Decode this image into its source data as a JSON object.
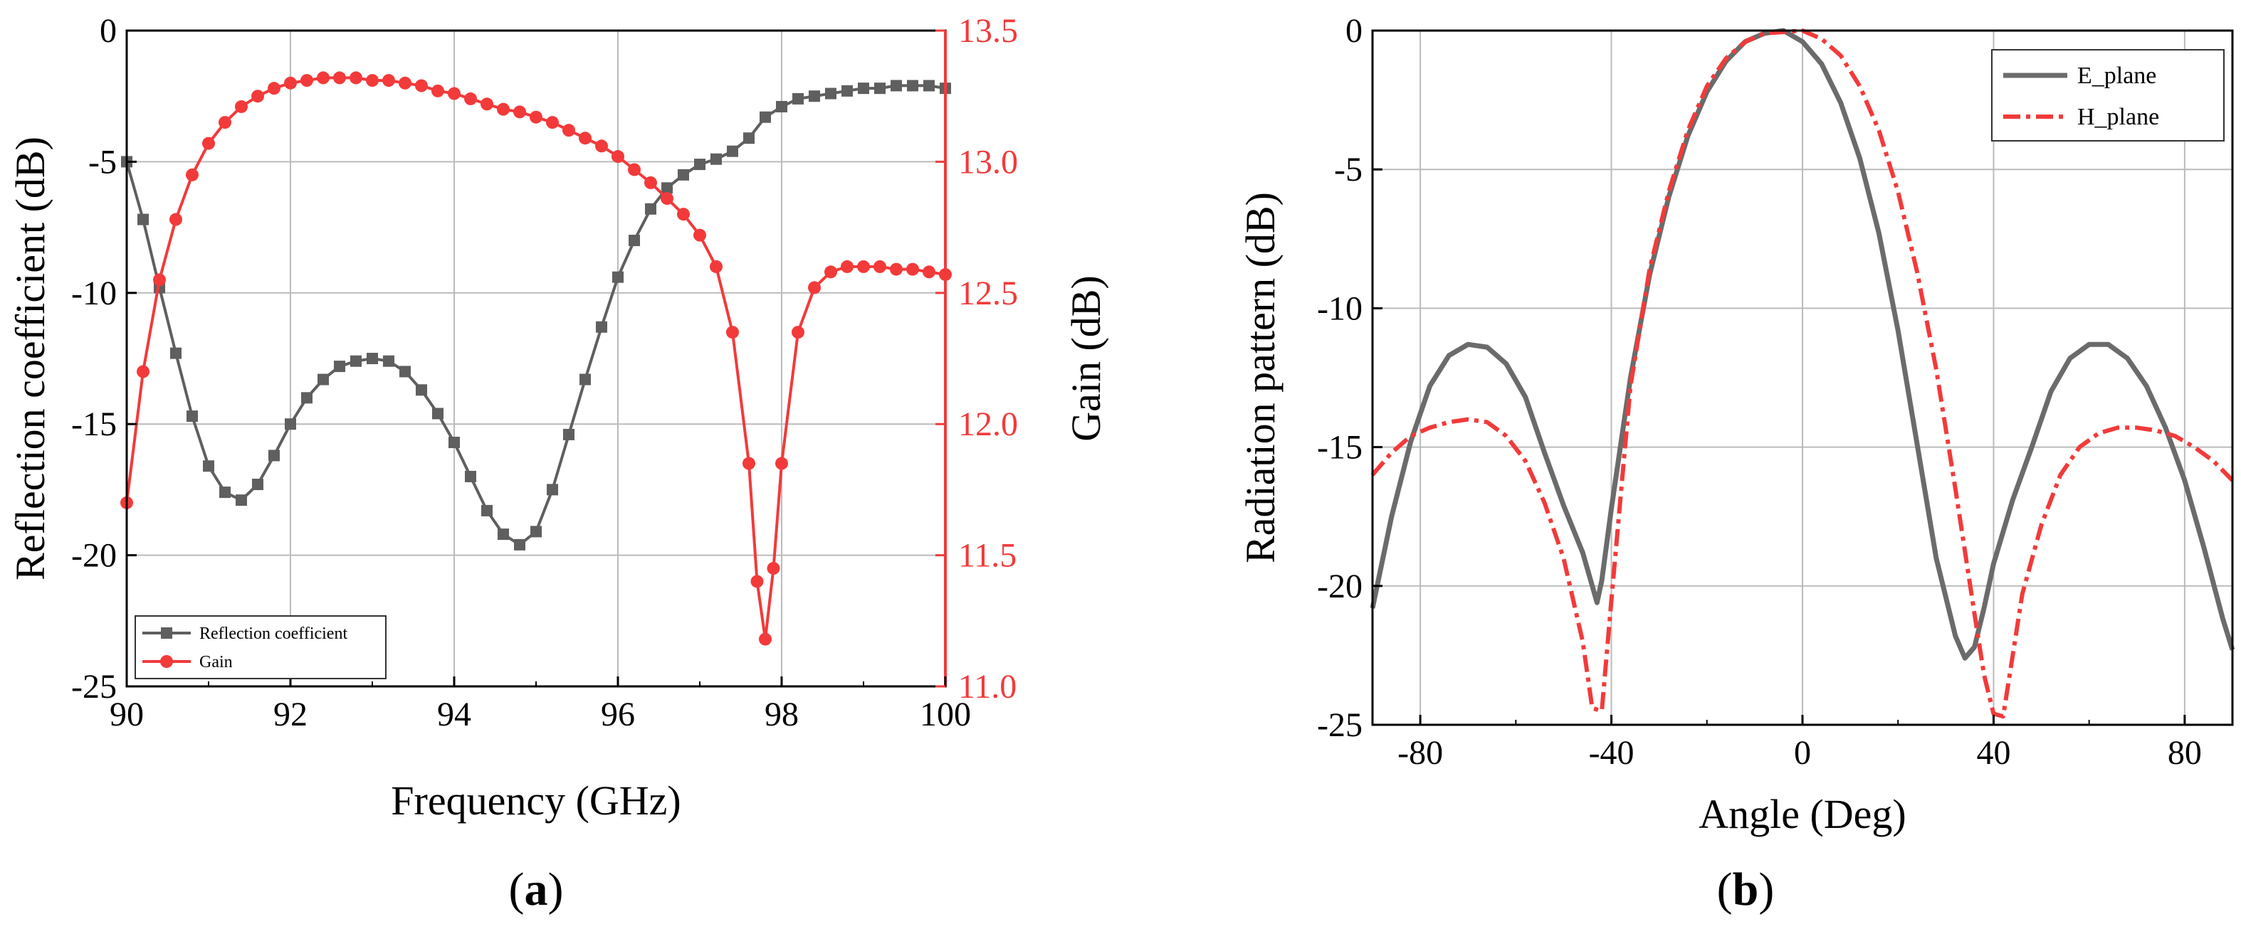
{
  "chart_data": [
    {
      "id": "a",
      "type": "line",
      "caption": {
        "open": "(",
        "letter": "a",
        "close": ")"
      },
      "xlabel": "Frequency (GHz)",
      "ylabel": "Reflection coefficient (dB)",
      "y2label": "Gain (dB)",
      "xlim": [
        90,
        100
      ],
      "ylim": [
        -25,
        0
      ],
      "y2lim": [
        11.0,
        13.5
      ],
      "xticks": [
        "90",
        "92",
        "94",
        "96",
        "98",
        "100"
      ],
      "xtick_values": [
        90,
        92,
        94,
        96,
        98,
        100
      ],
      "yticks": [
        "0",
        "-5",
        "-10",
        "-15",
        "-20",
        "-25"
      ],
      "ytick_values": [
        0,
        -5,
        -10,
        -15,
        -20,
        -25
      ],
      "y2ticks": [
        "13.5",
        "13.0",
        "12.5",
        "12.0",
        "11.5",
        "11.0"
      ],
      "y2tick_values": [
        13.5,
        13.0,
        12.5,
        12.0,
        11.5,
        11.0
      ],
      "colors": {
        "reflection": "#5f5f5f",
        "gain": "#f23a3a",
        "grid": "#bbbbbb"
      },
      "series": [
        {
          "name": "Reflection coefficient",
          "axis": "left",
          "marker": "square",
          "x": [
            90.0,
            90.2,
            90.4,
            90.6,
            90.8,
            91.0,
            91.2,
            91.4,
            91.6,
            91.8,
            92.0,
            92.2,
            92.4,
            92.6,
            92.8,
            93.0,
            93.2,
            93.4,
            93.6,
            93.8,
            94.0,
            94.2,
            94.4,
            94.6,
            94.8,
            95.0,
            95.2,
            95.4,
            95.6,
            95.8,
            96.0,
            96.2,
            96.4,
            96.6,
            96.8,
            97.0,
            97.2,
            97.4,
            97.6,
            97.8,
            98.0,
            98.2,
            98.4,
            98.6,
            98.8,
            99.0,
            99.2,
            99.4,
            99.6,
            99.8,
            100.0
          ],
          "y": [
            -5.0,
            -7.2,
            -9.8,
            -12.3,
            -14.7,
            -16.6,
            -17.6,
            -17.9,
            -17.3,
            -16.2,
            -15.0,
            -14.0,
            -13.3,
            -12.8,
            -12.6,
            -12.5,
            -12.6,
            -13.0,
            -13.7,
            -14.6,
            -15.7,
            -17.0,
            -18.3,
            -19.2,
            -19.6,
            -19.1,
            -17.5,
            -15.4,
            -13.3,
            -11.3,
            -9.4,
            -8.0,
            -6.8,
            -6.0,
            -5.5,
            -5.1,
            -4.9,
            -4.6,
            -4.1,
            -3.3,
            -2.9,
            -2.6,
            -2.5,
            -2.4,
            -2.3,
            -2.2,
            -2.2,
            -2.1,
            -2.1,
            -2.1,
            -2.2
          ]
        },
        {
          "name": "Gain",
          "axis": "right",
          "marker": "circle",
          "x": [
            90.0,
            90.2,
            90.4,
            90.6,
            90.8,
            91.0,
            91.2,
            91.4,
            91.6,
            91.8,
            92.0,
            92.2,
            92.4,
            92.6,
            92.8,
            93.0,
            93.2,
            93.4,
            93.6,
            93.8,
            94.0,
            94.2,
            94.4,
            94.6,
            94.8,
            95.0,
            95.2,
            95.4,
            95.6,
            95.8,
            96.0,
            96.2,
            96.4,
            96.6,
            96.8,
            97.0,
            97.2,
            97.4,
            97.6,
            97.7,
            97.8,
            97.9,
            98.0,
            98.2,
            98.4,
            98.6,
            98.8,
            99.0,
            99.2,
            99.4,
            99.6,
            99.8,
            100.0
          ],
          "y": [
            11.7,
            12.2,
            12.55,
            12.78,
            12.95,
            13.07,
            13.15,
            13.21,
            13.25,
            13.28,
            13.3,
            13.31,
            13.32,
            13.32,
            13.32,
            13.31,
            13.31,
            13.3,
            13.29,
            13.27,
            13.26,
            13.24,
            13.22,
            13.2,
            13.19,
            13.17,
            13.15,
            13.12,
            13.09,
            13.06,
            13.02,
            12.97,
            12.92,
            12.86,
            12.8,
            12.72,
            12.6,
            12.35,
            11.85,
            11.4,
            11.18,
            11.45,
            11.85,
            12.35,
            12.52,
            12.58,
            12.6,
            12.6,
            12.6,
            12.59,
            12.59,
            12.58,
            12.57
          ]
        }
      ],
      "legend": {
        "position": "bottom-left",
        "entries": [
          "Reflection coefficient",
          "Gain"
        ]
      },
      "grid": true
    },
    {
      "id": "b",
      "type": "line",
      "caption": {
        "open": "(",
        "letter": "b",
        "close": ")"
      },
      "xlabel": "Angle (Deg)",
      "ylabel": "Radiation pattern (dB)",
      "xlim": [
        -90,
        90
      ],
      "ylim": [
        -25,
        0
      ],
      "xticks": [
        "-80",
        "-40",
        "0",
        "40",
        "80"
      ],
      "xtick_values": [
        -80,
        -40,
        0,
        40,
        80
      ],
      "yticks": [
        "0",
        "-5",
        "-10",
        "-15",
        "-20",
        "-25"
      ],
      "ytick_values": [
        0,
        -5,
        -10,
        -15,
        -20,
        -25
      ],
      "colors": {
        "e_plane": "#6b6b6b",
        "h_plane": "#f23a3a",
        "grid": "#bbbbbb"
      },
      "series": [
        {
          "name": "E_plane",
          "style": "solid",
          "x": [
            -90,
            -86,
            -82,
            -78,
            -74,
            -70,
            -66,
            -62,
            -58,
            -54,
            -50,
            -46,
            -44,
            -43,
            -42,
            -40,
            -36,
            -32,
            -28,
            -24,
            -20,
            -16,
            -12,
            -8,
            -4,
            0,
            4,
            8,
            12,
            16,
            20,
            24,
            28,
            32,
            34,
            36,
            38,
            40,
            44,
            48,
            52,
            56,
            60,
            64,
            68,
            72,
            76,
            80,
            84,
            88,
            90
          ],
          "y": [
            -20.8,
            -17.5,
            -14.8,
            -12.8,
            -11.7,
            -11.3,
            -11.4,
            -12.0,
            -13.2,
            -15.2,
            -17.1,
            -18.8,
            -20.0,
            -20.6,
            -19.8,
            -17.2,
            -12.5,
            -8.8,
            -6.0,
            -3.8,
            -2.2,
            -1.1,
            -0.4,
            -0.1,
            0.0,
            -0.4,
            -1.2,
            -2.6,
            -4.6,
            -7.3,
            -10.8,
            -14.9,
            -19.0,
            -21.8,
            -22.6,
            -22.2,
            -20.8,
            -19.2,
            -16.9,
            -15.0,
            -13.0,
            -11.8,
            -11.3,
            -11.3,
            -11.8,
            -12.8,
            -14.3,
            -16.2,
            -18.6,
            -21.2,
            -22.3
          ]
        },
        {
          "name": "H_plane",
          "style": "dashdot",
          "x": [
            -90,
            -86,
            -82,
            -78,
            -74,
            -70,
            -66,
            -62,
            -58,
            -54,
            -50,
            -46,
            -44,
            -42,
            -40,
            -36,
            -32,
            -28,
            -24,
            -20,
            -16,
            -12,
            -8,
            -4,
            0,
            4,
            8,
            12,
            16,
            20,
            24,
            28,
            32,
            36,
            38,
            40,
            42,
            44,
            46,
            50,
            54,
            58,
            62,
            66,
            70,
            74,
            78,
            82,
            86,
            90
          ],
          "y": [
            -16.0,
            -15.2,
            -14.6,
            -14.3,
            -14.1,
            -14.0,
            -14.1,
            -14.6,
            -15.5,
            -17.0,
            -19.0,
            -22.0,
            -24.4,
            -24.5,
            -20.5,
            -12.8,
            -8.6,
            -5.8,
            -3.6,
            -2.0,
            -1.0,
            -0.4,
            -0.1,
            -0.05,
            0.0,
            -0.3,
            -0.9,
            -2.0,
            -3.6,
            -5.8,
            -8.7,
            -12.2,
            -16.5,
            -21.0,
            -23.2,
            -24.6,
            -24.7,
            -22.5,
            -20.3,
            -17.8,
            -16.0,
            -15.0,
            -14.5,
            -14.3,
            -14.3,
            -14.4,
            -14.6,
            -15.0,
            -15.5,
            -16.2
          ]
        }
      ],
      "legend": {
        "position": "top-right",
        "entries": [
          "E_plane",
          "H_plane"
        ]
      },
      "grid": true
    }
  ]
}
